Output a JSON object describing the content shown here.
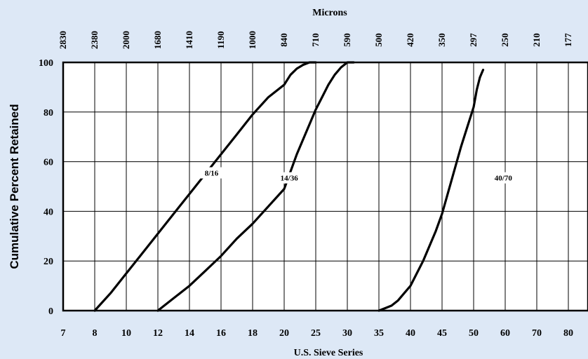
{
  "chart_data": {
    "type": "line",
    "title": "Microns",
    "xlabel": "U.S. Sieve Series",
    "ylabel": "Cumulative Percent Retained",
    "x_ticks": [
      "7",
      "8",
      "10",
      "12",
      "14",
      "16",
      "18",
      "20",
      "25",
      "30",
      "35",
      "40",
      "45",
      "50",
      "60",
      "70",
      "80"
    ],
    "micron_ticks": [
      "2830",
      "2380",
      "2000",
      "1680",
      "1410",
      "1190",
      "1000",
      "840",
      "710",
      "590",
      "500",
      "420",
      "350",
      "297",
      "250",
      "210",
      "177"
    ],
    "y_ticks": [
      0,
      20,
      40,
      60,
      80,
      100
    ],
    "ylim": [
      0,
      100
    ],
    "grid": true,
    "series": [
      {
        "name": "8/16",
        "label_pos": [
          15.4,
          55.5
        ],
        "points": [
          [
            8,
            0
          ],
          [
            9,
            7
          ],
          [
            10,
            15
          ],
          [
            11,
            23
          ],
          [
            12,
            31
          ],
          [
            13,
            39
          ],
          [
            14,
            47
          ],
          [
            15,
            55
          ],
          [
            16,
            63
          ],
          [
            17,
            71
          ],
          [
            18,
            79
          ],
          [
            19,
            86
          ],
          [
            20,
            91
          ],
          [
            21,
            95
          ],
          [
            22,
            97.5
          ],
          [
            23,
            99
          ],
          [
            24,
            100
          ],
          [
            25,
            100
          ]
        ]
      },
      {
        "name": "14/36",
        "label_pos": [
          20.8,
          53.5
        ],
        "points": [
          [
            12,
            0
          ],
          [
            13,
            5
          ],
          [
            14,
            10
          ],
          [
            15,
            16
          ],
          [
            16,
            22
          ],
          [
            17,
            29
          ],
          [
            18,
            35
          ],
          [
            19,
            42
          ],
          [
            20,
            49
          ],
          [
            21,
            56
          ],
          [
            22,
            63
          ],
          [
            23,
            69
          ],
          [
            24,
            75
          ],
          [
            25,
            81
          ],
          [
            26,
            86
          ],
          [
            27,
            91
          ],
          [
            28,
            95
          ],
          [
            29,
            98
          ],
          [
            30,
            100
          ],
          [
            31,
            100
          ]
        ]
      },
      {
        "name": "40/70",
        "label_pos": [
          59.4,
          53.5
        ],
        "points": [
          [
            35,
            0
          ],
          [
            36,
            1
          ],
          [
            37,
            2
          ],
          [
            38,
            4
          ],
          [
            39,
            7
          ],
          [
            40,
            10
          ],
          [
            41,
            15
          ],
          [
            42,
            20
          ],
          [
            43,
            26
          ],
          [
            44,
            32
          ],
          [
            45,
            39
          ],
          [
            46,
            48
          ],
          [
            47,
            57
          ],
          [
            48,
            66
          ],
          [
            49,
            74
          ],
          [
            50,
            82
          ],
          [
            51,
            89
          ],
          [
            52,
            94
          ],
          [
            53,
            97
          ]
        ]
      }
    ]
  }
}
